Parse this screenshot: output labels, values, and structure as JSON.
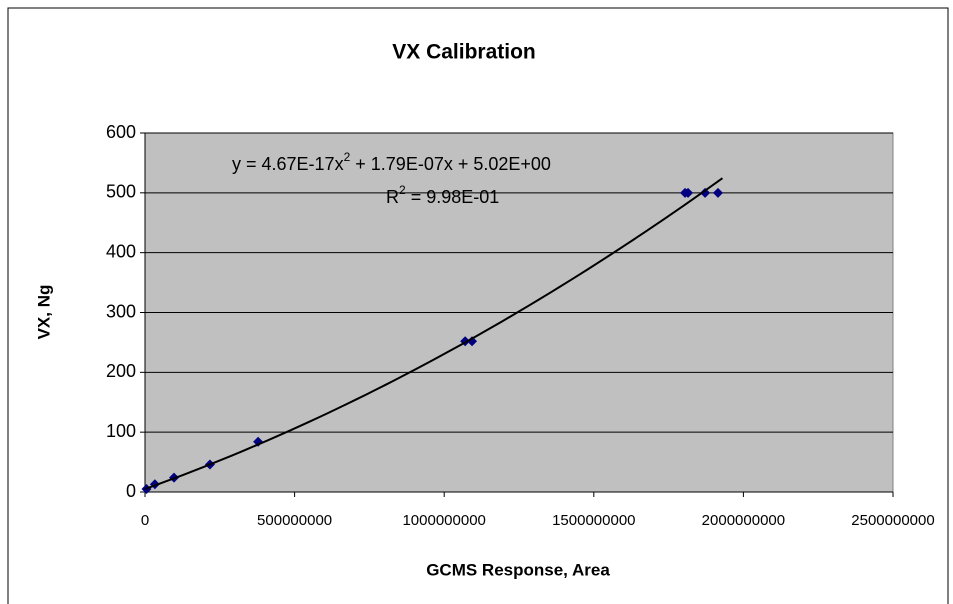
{
  "chart_data": {
    "type": "scatter",
    "title": "VX Calibration",
    "x_label": "GCMS Response, Area",
    "y_label": "VX, Ng",
    "series": [
      {
        "name": "VX",
        "color": "#000080",
        "x": [
          5000000,
          33000000,
          97000000,
          217000000,
          378000000,
          1070000000,
          1093000000,
          1805000000,
          1815000000,
          1872000000,
          1915000000
        ],
        "values": [
          5,
          13,
          24,
          46,
          84,
          252,
          252,
          500,
          500,
          500,
          500
        ]
      }
    ],
    "trendline": {
      "coefficients": [
        4.67e-17,
        1.79e-07,
        5.02
      ],
      "x": [
        0,
        1930000000
      ],
      "color": "#000000",
      "equation": [
        "y = 4.67E-17x",
        "2",
        " + 1.79E-07x + 5.02E+00"
      ],
      "r_squared": [
        "R",
        "2",
        " = 9.98E-01"
      ]
    },
    "xlim": [
      0,
      2500000000
    ],
    "xticks": [
      0,
      500000000,
      1000000000,
      1500000000,
      2000000000,
      2500000000
    ],
    "ylim": [
      0,
      600
    ],
    "yticks": [
      0,
      100,
      200,
      300,
      400,
      500,
      600
    ],
    "grid": true
  }
}
